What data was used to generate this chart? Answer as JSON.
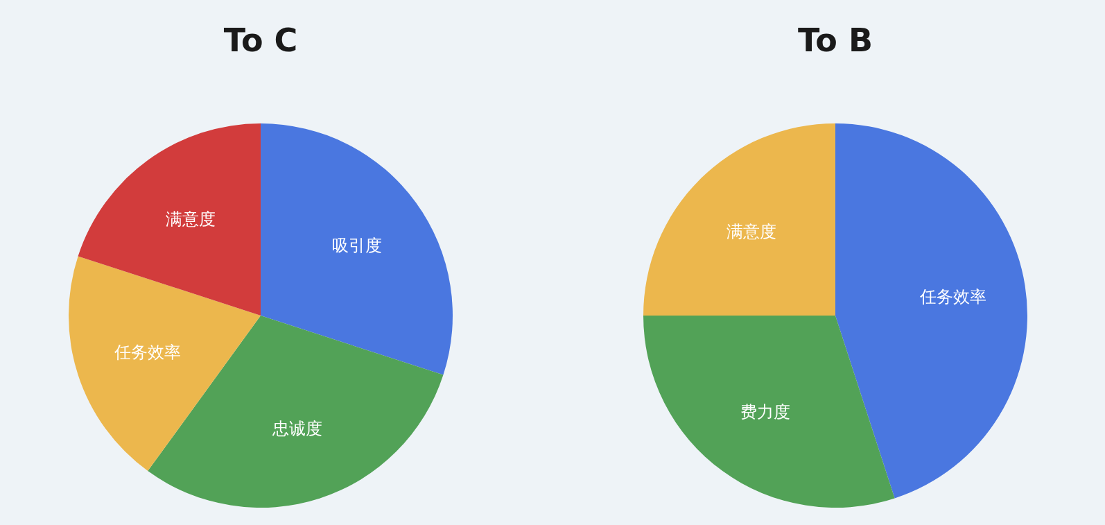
{
  "chart_data": [
    {
      "type": "pie",
      "title": "To C",
      "categories": [
        "吸引度",
        "忠诚度",
        "任务效率",
        "满意度"
      ],
      "values": [
        30,
        30,
        20,
        20
      ],
      "colors": [
        "#4a77e0",
        "#52a257",
        "#ecb74d",
        "#d23c3c"
      ]
    },
    {
      "type": "pie",
      "title": "To B",
      "categories": [
        "任务效率",
        "费力度",
        "满意度"
      ],
      "values": [
        45,
        30,
        25
      ],
      "colors": [
        "#4a77e0",
        "#52a257",
        "#ecb74d"
      ]
    }
  ]
}
